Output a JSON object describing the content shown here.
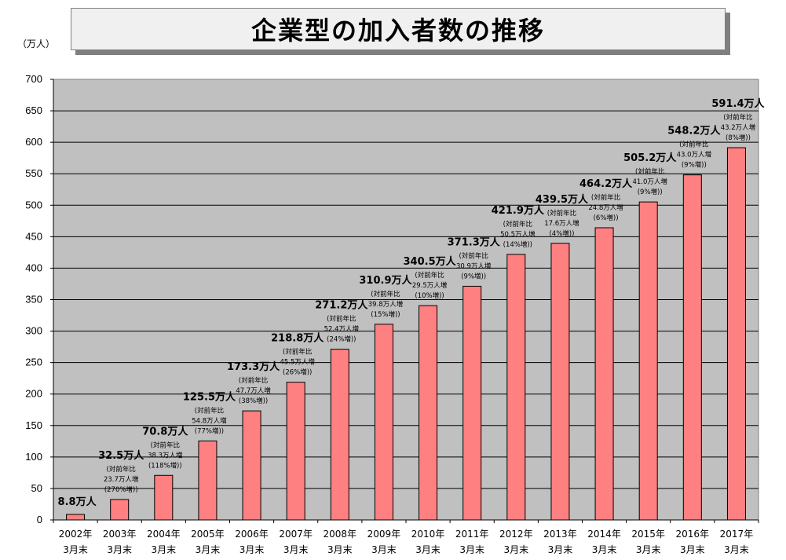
{
  "chart_data": {
    "type": "bar",
    "title": "企業型の加入者数の推移",
    "y_unit": "（万人）",
    "ylim": [
      0,
      700
    ],
    "yticks": [
      0,
      50,
      100,
      150,
      200,
      250,
      300,
      350,
      400,
      450,
      500,
      550,
      600,
      650,
      700
    ],
    "grid": true,
    "plot_background": "#c0c0c0",
    "bar_color": "#ff8080",
    "categories": [
      [
        "2002年",
        "3月末"
      ],
      [
        "2003年",
        "3月末"
      ],
      [
        "2004年",
        "3月末"
      ],
      [
        "2005年",
        "3月末"
      ],
      [
        "2006年",
        "3月末"
      ],
      [
        "2007年",
        "3月末"
      ],
      [
        "2008年",
        "3月末"
      ],
      [
        "2009年",
        "3月末"
      ],
      [
        "2010年",
        "3月末"
      ],
      [
        "2011年",
        "3月末"
      ],
      [
        "2012年",
        "3月末"
      ],
      [
        "2013年",
        "3月末"
      ],
      [
        "2014年",
        "3月末"
      ],
      [
        "2015年",
        "3月末"
      ],
      [
        "2016年",
        "3月末"
      ],
      [
        "2017年",
        "3月末"
      ]
    ],
    "values": [
      8.8,
      32.5,
      70.8,
      125.5,
      173.3,
      218.8,
      271.2,
      310.9,
      340.5,
      371.3,
      421.9,
      439.5,
      464.2,
      505.2,
      548.2,
      591.4
    ],
    "value_labels": [
      "8.8万人",
      "32.5万人",
      "70.8万人",
      "125.5万人",
      "173.3万人",
      "218.8万人",
      "271.2万人",
      "310.9万人",
      "340.5万人",
      "371.3万人",
      "421.9万人",
      "439.5万人",
      "464.2万人",
      "505.2万人",
      "548.2万人",
      "591.4万人"
    ],
    "annotations": [
      null,
      [
        "(対前年比",
        "23.7万人増",
        "(270%増))"
      ],
      [
        "(対前年比",
        "38.3万人増",
        "(118%増))"
      ],
      [
        "(対前年比",
        "54.8万人増",
        "(77%増))"
      ],
      [
        "(対前年比",
        "47.7万人増",
        "(38%増))"
      ],
      [
        "(対前年比",
        "45.5万人増",
        "(26%増))"
      ],
      [
        "(対前年比",
        "52.4万人増",
        "(24%増))"
      ],
      [
        "(対前年比",
        "39.8万人増",
        "(15%増))"
      ],
      [
        "(対前年比",
        "29.5万人増",
        "(10%増))"
      ],
      [
        "(対前年比",
        "30.9万人増",
        "(9%増))"
      ],
      [
        "(対前年比",
        "50.5万人増",
        "(14%増))"
      ],
      [
        "(対前年比",
        "17.6万人増",
        "(4%増))"
      ],
      [
        "(対前年比",
        "24.8万人増",
        "(6%増))"
      ],
      [
        "(対前年比",
        "41.0万人増",
        "(9%増))"
      ],
      [
        "(対前年比",
        "43.0万人増",
        "(9%増))"
      ],
      [
        "(対前年比",
        "43.2万人増",
        "(8%増))"
      ]
    ]
  }
}
